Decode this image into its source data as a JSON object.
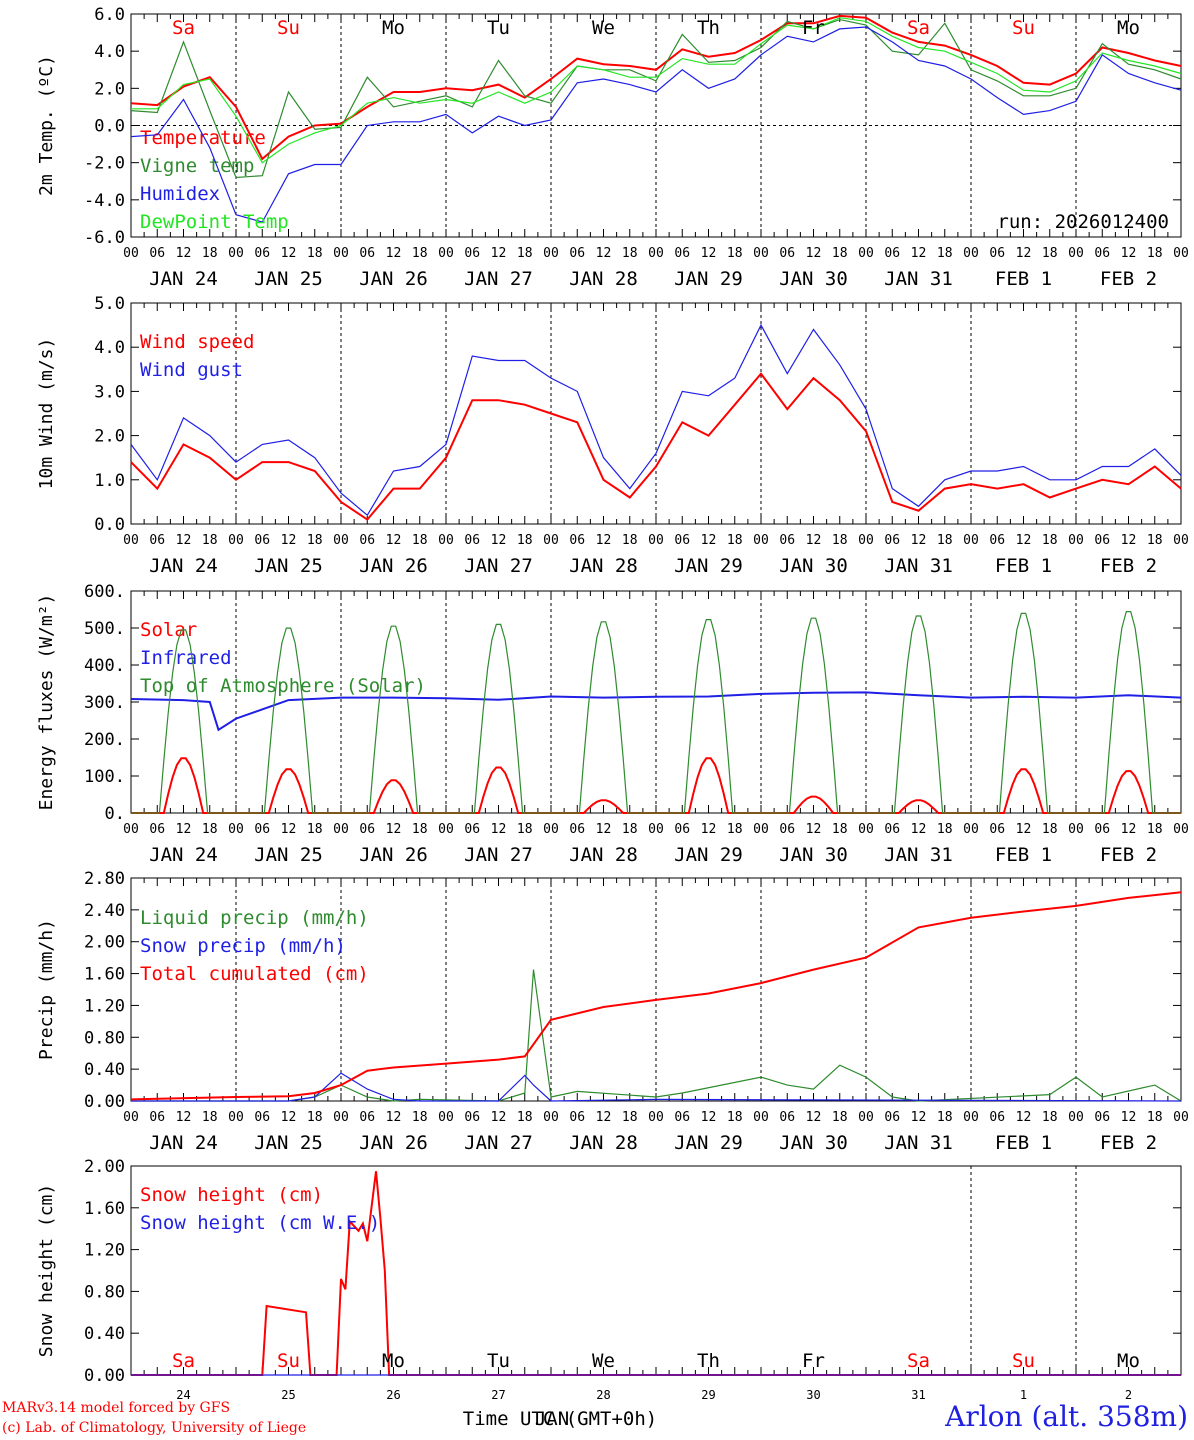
{
  "colors": {
    "red": "#ff0000",
    "green": "#2e8b2e",
    "blue": "#1f1fe6",
    "lightgreen": "#22e622",
    "black": "#000000"
  },
  "days": [
    "Sa",
    "Su",
    "Mo",
    "Tu",
    "We",
    "Th",
    "Fr",
    "Sa",
    "Su",
    "Mo"
  ],
  "weekend_days": [
    "Sa",
    "Su"
  ],
  "hour_ticks": [
    "00",
    "06",
    "12",
    "18"
  ],
  "date_labels": [
    "JAN 24",
    "JAN 25",
    "JAN 26",
    "JAN 27",
    "JAN 28",
    "JAN 29",
    "JAN 30",
    "JAN 31",
    "FEB  1",
    "FEB  2"
  ],
  "day_numbers": [
    "24",
    "25",
    "26",
    "27",
    "28",
    "29",
    "30",
    "31",
    "1",
    "2"
  ],
  "run_label": "run: 2026012400",
  "x_axis_title": "Time UTC (GMT+0h)",
  "x_axis_overlap": "JAN",
  "credit_line1": "MARv3.14 model forced by GFS",
  "credit_line2": "(c) Lab. of Climatology, University of Liege",
  "station": "Arlon (alt. 358m)",
  "chart_data": [
    {
      "type": "line",
      "id": "temp",
      "ylabel": "2m Temp. (ºC)",
      "ylim": [
        -6,
        6
      ],
      "yticks": [
        "6.0",
        "4.0",
        "2.0",
        "0.0",
        "-2.0",
        "-4.0",
        "-6.0"
      ],
      "zero_line": true,
      "x_hours": [
        0,
        6,
        12,
        18,
        24,
        30,
        36,
        42,
        48,
        54,
        60,
        66,
        72,
        78,
        84,
        90,
        96,
        102,
        108,
        114,
        120,
        126,
        132,
        138,
        144,
        150,
        156,
        162,
        168,
        174,
        180,
        186,
        192,
        198,
        204,
        210,
        216,
        222,
        228,
        234,
        240
      ],
      "series": [
        {
          "name": "Temperature",
          "color": "red",
          "values": [
            1.2,
            1.1,
            2.1,
            2.6,
            1.0,
            -1.8,
            -0.6,
            0.0,
            0.1,
            1.0,
            1.8,
            1.8,
            2.0,
            1.9,
            2.2,
            1.5,
            2.5,
            3.6,
            3.3,
            3.2,
            3.0,
            4.1,
            3.7,
            3.9,
            4.6,
            5.5,
            5.5,
            5.9,
            5.8,
            5.0,
            4.5,
            4.3,
            3.8,
            3.2,
            2.3,
            2.2,
            2.8,
            4.2,
            3.9,
            3.5,
            3.2
          ]
        },
        {
          "name": "Vigne temp",
          "color": "green",
          "values": [
            0.8,
            0.7,
            4.5,
            0.8,
            -2.8,
            -2.7,
            1.8,
            -0.2,
            -0.1,
            2.6,
            1.0,
            1.3,
            1.6,
            1.0,
            3.5,
            1.6,
            1.2,
            3.2,
            3.0,
            3.0,
            2.4,
            4.9,
            3.4,
            3.5,
            4.2,
            5.6,
            5.2,
            5.7,
            5.4,
            4.0,
            3.8,
            5.5,
            3.0,
            2.4,
            1.6,
            1.6,
            2.0,
            4.4,
            3.3,
            3.0,
            2.5
          ]
        },
        {
          "name": "Humidex",
          "color": "blue",
          "values": [
            -0.6,
            -0.5,
            1.4,
            -1.2,
            -4.8,
            -5.2,
            -2.6,
            -2.1,
            -2.1,
            0.0,
            0.2,
            0.2,
            0.6,
            -0.4,
            0.5,
            0.0,
            0.3,
            2.3,
            2.5,
            2.2,
            1.8,
            3.0,
            2.0,
            2.5,
            3.8,
            4.8,
            4.5,
            5.2,
            5.3,
            4.5,
            3.5,
            3.2,
            2.5,
            1.5,
            0.6,
            0.8,
            1.3,
            3.8,
            2.8,
            2.3,
            1.9
          ]
        },
        {
          "name": "DewPoint Temp",
          "color": "lightgreen",
          "values": [
            0.9,
            0.9,
            2.2,
            2.5,
            0.5,
            -2.0,
            -1.0,
            -0.4,
            0.0,
            1.2,
            1.5,
            1.2,
            1.4,
            1.2,
            1.8,
            1.2,
            1.8,
            3.2,
            3.0,
            2.6,
            2.6,
            3.6,
            3.3,
            3.3,
            4.4,
            5.4,
            5.2,
            5.8,
            5.6,
            4.8,
            4.2,
            4.0,
            3.4,
            2.8,
            1.9,
            1.8,
            2.4,
            3.9,
            3.5,
            3.2,
            2.8
          ]
        }
      ]
    },
    {
      "type": "line",
      "id": "wind",
      "ylabel": "10m Wind (m/s)",
      "ylim": [
        0,
        5
      ],
      "yticks": [
        "5.0",
        "4.0",
        "3.0",
        "2.0",
        "1.0",
        "0.0"
      ],
      "x_hours": [
        0,
        6,
        12,
        18,
        24,
        30,
        36,
        42,
        48,
        54,
        60,
        66,
        72,
        78,
        84,
        90,
        96,
        102,
        108,
        114,
        120,
        126,
        132,
        138,
        144,
        150,
        156,
        162,
        168,
        174,
        180,
        186,
        192,
        198,
        204,
        210,
        216,
        222,
        228,
        234,
        240
      ],
      "series": [
        {
          "name": "Wind speed",
          "color": "red",
          "values": [
            1.4,
            0.8,
            1.8,
            1.5,
            1.0,
            1.4,
            1.4,
            1.2,
            0.5,
            0.1,
            0.8,
            0.8,
            1.5,
            2.8,
            2.8,
            2.7,
            2.5,
            2.3,
            1.0,
            0.6,
            1.3,
            2.3,
            2.0,
            2.7,
            3.4,
            2.6,
            3.3,
            2.8,
            2.1,
            0.5,
            0.3,
            0.8,
            0.9,
            0.8,
            0.9,
            0.6,
            0.8,
            1.0,
            0.9,
            1.3,
            0.8
          ]
        },
        {
          "name": "Wind gust",
          "color": "blue",
          "values": [
            1.8,
            1.0,
            2.4,
            2.0,
            1.4,
            1.8,
            1.9,
            1.5,
            0.7,
            0.2,
            1.2,
            1.3,
            1.8,
            3.8,
            3.7,
            3.7,
            3.3,
            3.0,
            1.5,
            0.8,
            1.6,
            3.0,
            2.9,
            3.3,
            4.5,
            3.4,
            4.4,
            3.6,
            2.6,
            0.8,
            0.4,
            1.0,
            1.2,
            1.2,
            1.3,
            1.0,
            1.0,
            1.3,
            1.3,
            1.7,
            1.1
          ]
        }
      ]
    },
    {
      "type": "line",
      "id": "energy",
      "ylabel": "Energy fluxes (W/m²)",
      "ylim": [
        0,
        600
      ],
      "yticks": [
        "600.",
        "500.",
        "400.",
        "300.",
        "200.",
        "100.",
        "0."
      ],
      "series": [
        {
          "name": "Solar",
          "color": "red",
          "peaks": [
            150,
            120,
            90,
            125,
            35,
            150,
            45,
            35,
            120,
            115
          ]
        },
        {
          "name": "Infrared",
          "color": "blue",
          "x_hours": [
            0,
            12,
            18,
            20,
            24,
            36,
            48,
            60,
            72,
            84,
            96,
            108,
            120,
            132,
            144,
            156,
            168,
            180,
            192,
            204,
            216,
            228,
            240
          ],
          "values": [
            308,
            305,
            300,
            225,
            255,
            305,
            312,
            312,
            310,
            306,
            315,
            312,
            314,
            315,
            322,
            325,
            326,
            318,
            312,
            314,
            312,
            318,
            312
          ]
        },
        {
          "name": "Top of Atmosphere (Solar)",
          "color": "green",
          "peaks": [
            500,
            505,
            510,
            515,
            522,
            528,
            532,
            538,
            545,
            550
          ]
        }
      ]
    },
    {
      "type": "line",
      "id": "precip",
      "ylabel": "Precip (mm/h)",
      "ylim": [
        0,
        2.8
      ],
      "yticks": [
        "2.80",
        "2.40",
        "2.00",
        "1.60",
        "1.20",
        "0.80",
        "0.40",
        "0.00"
      ],
      "series": [
        {
          "name": "Liquid precip (mm/h)",
          "color": "green",
          "x_hours": [
            0,
            36,
            42,
            48,
            54,
            60,
            66,
            84,
            90,
            92,
            96,
            102,
            120,
            126,
            144,
            150,
            156,
            162,
            168,
            174,
            180,
            210,
            216,
            222,
            234,
            240
          ],
          "values": [
            0,
            0,
            0.05,
            0.2,
            0.05,
            0,
            0.02,
            0,
            0.1,
            1.65,
            0.05,
            0.12,
            0.05,
            0.1,
            0.3,
            0.2,
            0.15,
            0.45,
            0.3,
            0.05,
            0,
            0.08,
            0.3,
            0.05,
            0.2,
            0
          ]
        },
        {
          "name": "Snow precip (mm/h)",
          "color": "blue",
          "x_hours": [
            0,
            36,
            42,
            48,
            54,
            60,
            66,
            84,
            90,
            92,
            96,
            120,
            240
          ],
          "values": [
            0,
            0,
            0.05,
            0.35,
            0.15,
            0.02,
            0,
            0,
            0.32,
            0.2,
            0,
            0.02,
            0
          ]
        },
        {
          "name": "Total cumulated (cm)",
          "color": "red",
          "x_hours": [
            0,
            24,
            36,
            42,
            48,
            54,
            60,
            72,
            84,
            90,
            96,
            108,
            120,
            132,
            144,
            156,
            168,
            180,
            192,
            204,
            216,
            228,
            240
          ],
          "values": [
            0.02,
            0.05,
            0.06,
            0.1,
            0.2,
            0.38,
            0.42,
            0.47,
            0.52,
            0.56,
            1.02,
            1.18,
            1.27,
            1.35,
            1.48,
            1.65,
            1.8,
            2.18,
            2.3,
            2.38,
            2.45,
            2.55,
            2.62
          ]
        }
      ]
    },
    {
      "type": "line",
      "id": "snow",
      "ylabel": "Snow height (cm)",
      "ylim": [
        0,
        2
      ],
      "yticks": [
        "2.00",
        "1.60",
        "1.20",
        "0.80",
        "0.40",
        "0.00"
      ],
      "series": [
        {
          "name": "Snow height (cm)",
          "color": "red",
          "x_hours": [
            0,
            30,
            31,
            40,
            41,
            47,
            48,
            49,
            50,
            52,
            53,
            54,
            56,
            57,
            58,
            59,
            60,
            240
          ],
          "values": [
            0,
            0,
            0.66,
            0.6,
            0,
            0,
            0.92,
            0.82,
            1.47,
            1.38,
            1.45,
            1.28,
            1.95,
            1.5,
            1.0,
            0,
            0,
            0
          ]
        },
        {
          "name": "Snow height (cm W.E.)",
          "color": "blue",
          "x_hours": [
            0,
            240
          ],
          "values": [
            0,
            0
          ]
        }
      ]
    }
  ]
}
